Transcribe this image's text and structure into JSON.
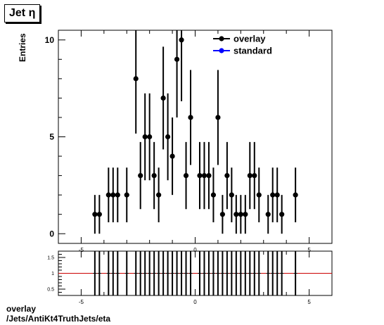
{
  "title": "Jet  η",
  "footer": {
    "line1": "overlay",
    "line2": "/Jets/AntiKt4TruthJets/eta"
  },
  "colors": {
    "overlay": "#000000",
    "standard": "#0000ff",
    "ratio_line": "#cc0000"
  },
  "chart_data": [
    {
      "type": "scatter",
      "title": "Jet  η",
      "xlabel": "",
      "ylabel": "Entries",
      "xlim": [
        -6,
        6
      ],
      "ylim": [
        -0.5,
        10.5
      ],
      "x_ticks": [
        -5,
        0,
        5
      ],
      "y_ticks": [
        0,
        5,
        10
      ],
      "legend": {
        "placement": "top-right",
        "entries": [
          "overlay",
          "standard"
        ]
      },
      "grid": false,
      "series": [
        {
          "name": "overlay",
          "x": [
            -4.4,
            -4.2,
            -3.8,
            -3.6,
            -3.4,
            -3.0,
            -2.6,
            -2.4,
            -2.2,
            -2.0,
            -1.8,
            -1.6,
            -1.4,
            -1.2,
            -1.0,
            -0.8,
            -0.6,
            -0.4,
            -0.2,
            0.2,
            0.4,
            0.6,
            0.8,
            1.0,
            1.2,
            1.4,
            1.6,
            1.8,
            2.0,
            2.2,
            2.4,
            2.6,
            2.8,
            3.2,
            3.4,
            3.6,
            3.8,
            4.4
          ],
          "y": [
            1,
            1,
            2,
            2,
            2,
            2,
            8,
            3,
            5,
            5,
            3,
            2,
            7,
            5,
            4,
            9,
            10,
            3,
            6,
            3,
            3,
            3,
            2,
            6,
            1,
            3,
            2,
            1,
            1,
            1,
            3,
            3,
            2,
            1,
            2,
            2,
            1,
            2
          ],
          "y_err": [
            1,
            1,
            1.41,
            1.41,
            1.41,
            1.41,
            2.83,
            1.73,
            2.24,
            2.24,
            1.73,
            1.41,
            2.65,
            2.24,
            2,
            3,
            3.16,
            1.73,
            2.45,
            1.73,
            1.73,
            1.73,
            1.41,
            2.45,
            1,
            1.73,
            1.41,
            1,
            1,
            1,
            1.73,
            1.73,
            1.41,
            1,
            1.41,
            1.41,
            1,
            1.41
          ]
        },
        {
          "name": "standard",
          "x": [],
          "y": []
        }
      ]
    },
    {
      "type": "scatter",
      "title": "",
      "xlabel": "",
      "ylabel": "",
      "xlim": [
        -6,
        6
      ],
      "ylim": [
        0.3,
        1.7
      ],
      "x_ticks": [
        -5,
        0,
        5
      ],
      "y_ticks": [
        0.5,
        1,
        1.5
      ],
      "reference_line": 1,
      "series": [
        {
          "name": "ratio",
          "x": [
            -4.4,
            -4.2,
            -3.8,
            -3.6,
            -3.4,
            -3.0,
            -2.6,
            -2.4,
            -2.2,
            -2.0,
            -1.8,
            -1.6,
            -1.4,
            -1.2,
            -1.0,
            -0.8,
            -0.6,
            -0.4,
            -0.2,
            0.2,
            0.4,
            0.6,
            0.8,
            1.0,
            1.2,
            1.4,
            1.6,
            1.8,
            2.0,
            2.2,
            2.4,
            2.6,
            2.8,
            3.2,
            3.4,
            3.6,
            3.8,
            4.4
          ],
          "y": [
            1,
            1,
            1,
            1,
            1,
            1,
            1,
            1,
            1,
            1,
            1,
            1,
            1,
            1,
            1,
            1,
            1,
            1,
            1,
            1,
            1,
            1,
            1,
            1,
            1,
            1,
            1,
            1,
            1,
            1,
            1,
            1,
            1,
            1,
            1,
            1,
            1,
            1
          ]
        }
      ]
    }
  ]
}
